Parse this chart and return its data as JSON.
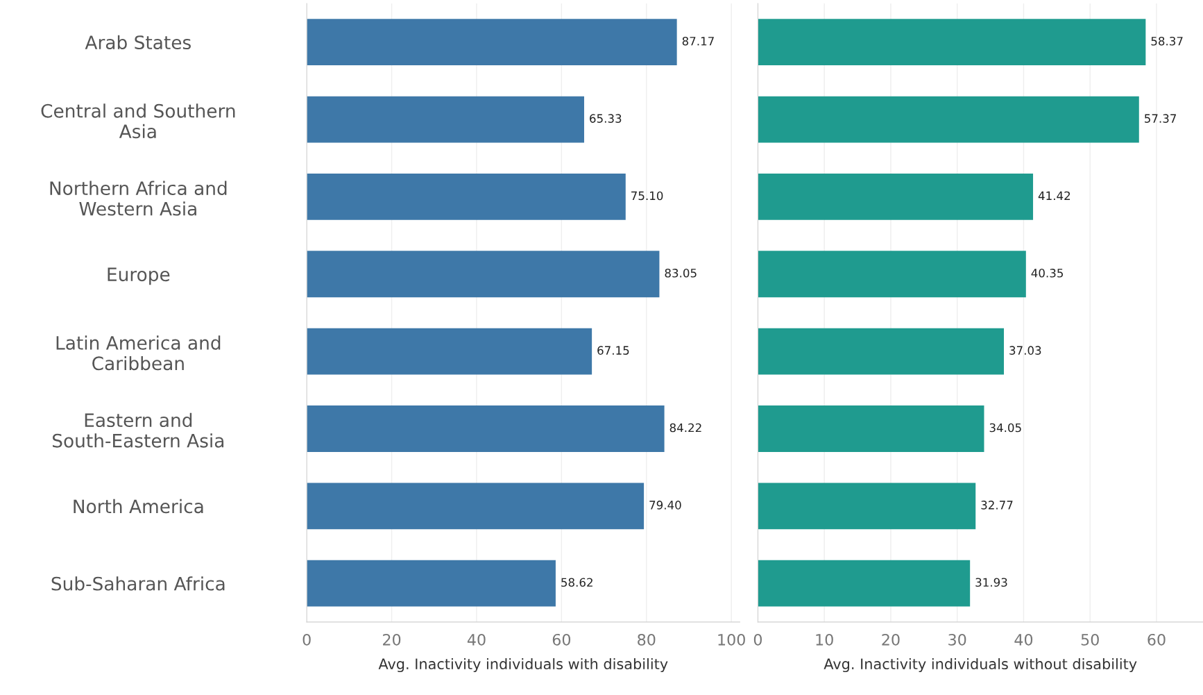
{
  "chart_data": [
    {
      "type": "bar",
      "orientation": "horizontal",
      "xlabel": "Avg. Inactivity individuals with disability",
      "categories": [
        "Arab States",
        "Central and Southern\nAsia",
        "Northern Africa and\nWestern Asia",
        "Europe",
        "Latin America and\nCaribbean",
        "Eastern and\nSouth-Eastern Asia",
        "North America",
        "Sub-Saharan Africa"
      ],
      "values": [
        87.17,
        65.33,
        75.1,
        83.05,
        67.15,
        84.22,
        79.4,
        58.62
      ],
      "value_labels": [
        "87.17",
        "65.33",
        "75.10",
        "83.05",
        "67.15",
        "84.22",
        "79.40",
        "58.62"
      ],
      "color": "#3e78a8",
      "xlim": [
        0,
        102
      ],
      "xticks": [
        0,
        20,
        40,
        60,
        80,
        100
      ],
      "grid": "x"
    },
    {
      "type": "bar",
      "orientation": "horizontal",
      "xlabel": "Avg. Inactivity individuals without disability",
      "values": [
        58.37,
        57.37,
        41.42,
        40.35,
        37.03,
        34.05,
        32.77,
        31.93
      ],
      "value_labels": [
        "58.37",
        "57.37",
        "41.42",
        "40.35",
        "37.03",
        "34.05",
        "32.77",
        "31.93"
      ],
      "color": "#1f9b8f",
      "xlim": [
        0,
        67
      ],
      "xticks": [
        0,
        10,
        20,
        30,
        40,
        50,
        60
      ],
      "grid": "x",
      "tick_labels": "x"
    }
  ]
}
